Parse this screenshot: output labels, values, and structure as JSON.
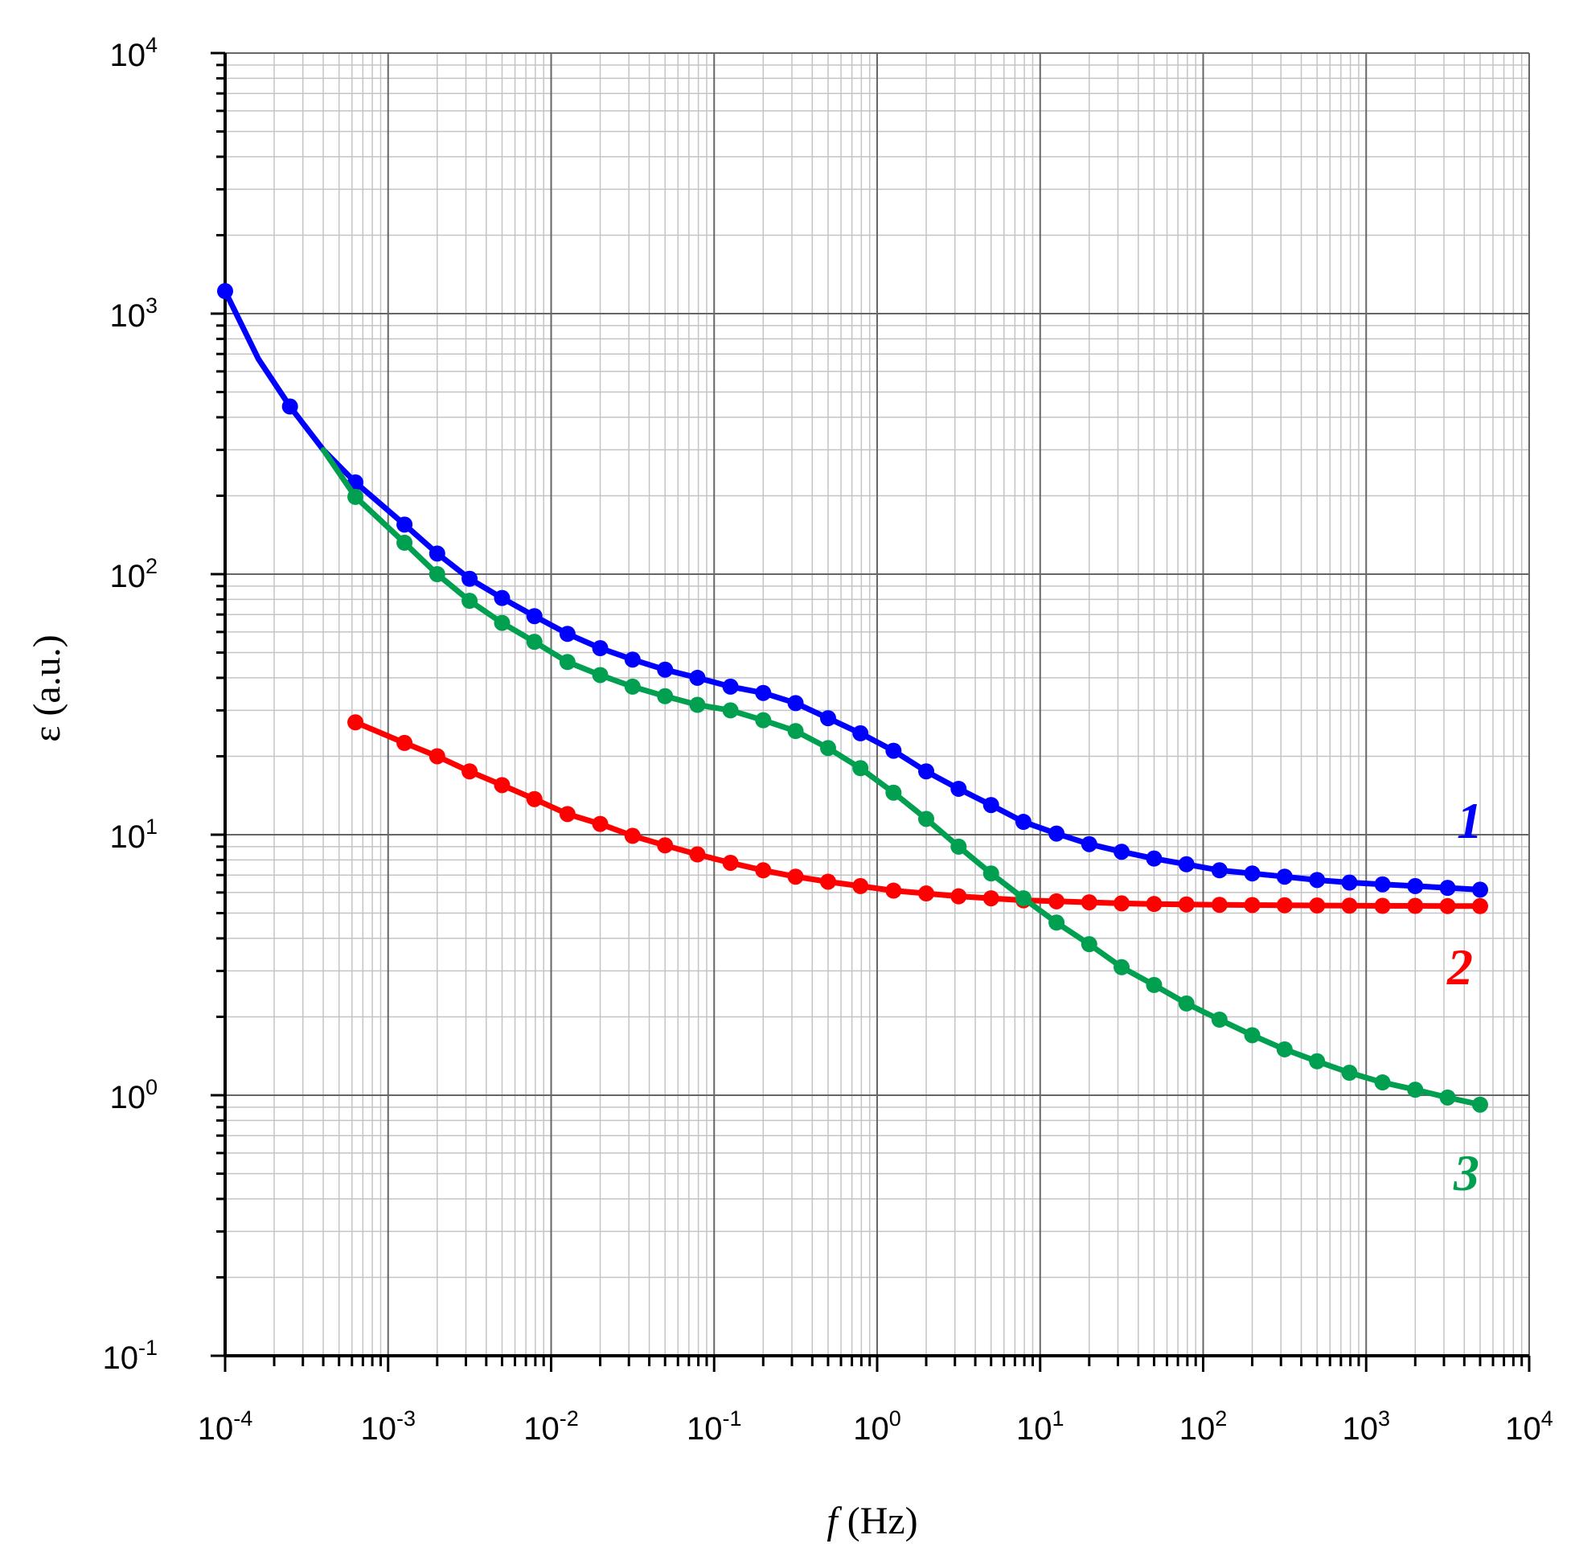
{
  "chart_data": {
    "type": "line",
    "xlabel": {
      "var": "f",
      "unit": " (Hz)"
    },
    "ylabel": "ε (a.u.)",
    "x_scale": "log",
    "y_scale": "log",
    "xlim": [
      0.0001,
      10000
    ],
    "ylim": [
      0.1,
      10000
    ],
    "grid": true,
    "x_ticks": [
      {
        "base": "10",
        "exp": "-4"
      },
      {
        "base": "10",
        "exp": "-3"
      },
      {
        "base": "10",
        "exp": "-2"
      },
      {
        "base": "10",
        "exp": "-1"
      },
      {
        "base": "10",
        "exp": "0"
      },
      {
        "base": "10",
        "exp": "1"
      },
      {
        "base": "10",
        "exp": "2"
      },
      {
        "base": "10",
        "exp": "3"
      },
      {
        "base": "10",
        "exp": "4"
      }
    ],
    "y_ticks": [
      {
        "base": "10",
        "exp": "-1"
      },
      {
        "base": "10",
        "exp": "0"
      },
      {
        "base": "10",
        "exp": "1"
      },
      {
        "base": "10",
        "exp": "2"
      },
      {
        "base": "10",
        "exp": "3"
      },
      {
        "base": "10",
        "exp": "4"
      }
    ],
    "series": [
      {
        "label": "1",
        "color": "#0000ff",
        "line_only": [
          [
            0.00016,
            670
          ],
          [
            0.0004,
            300
          ]
        ],
        "points": [
          [
            0.0001,
            1220
          ],
          [
            0.00025,
            440
          ],
          [
            0.00063,
            225
          ],
          [
            0.00126,
            155
          ],
          [
            0.002,
            120
          ],
          [
            0.00316,
            96
          ],
          [
            0.005,
            81
          ],
          [
            0.0079,
            69
          ],
          [
            0.0126,
            59
          ],
          [
            0.02,
            52
          ],
          [
            0.0316,
            47
          ],
          [
            0.05,
            43
          ],
          [
            0.079,
            40
          ],
          [
            0.126,
            37
          ],
          [
            0.2,
            35
          ],
          [
            0.316,
            32
          ],
          [
            0.5,
            28
          ],
          [
            0.79,
            24.5
          ],
          [
            1.26,
            21
          ],
          [
            2.0,
            17.5
          ],
          [
            3.16,
            15
          ],
          [
            5.0,
            13
          ],
          [
            7.9,
            11.2
          ],
          [
            12.6,
            10.1
          ],
          [
            20,
            9.2
          ],
          [
            31.6,
            8.6
          ],
          [
            50,
            8.1
          ],
          [
            79,
            7.7
          ],
          [
            126,
            7.3
          ],
          [
            200,
            7.1
          ],
          [
            316,
            6.9
          ],
          [
            500,
            6.7
          ],
          [
            790,
            6.55
          ],
          [
            1260,
            6.45
          ],
          [
            2000,
            6.35
          ],
          [
            3160,
            6.25
          ],
          [
            5000,
            6.15
          ]
        ]
      },
      {
        "label": "2",
        "color": "#ff0000",
        "line_only": [],
        "points": [
          [
            0.00063,
            27
          ],
          [
            0.00126,
            22.5
          ],
          [
            0.002,
            20
          ],
          [
            0.00316,
            17.5
          ],
          [
            0.005,
            15.5
          ],
          [
            0.0079,
            13.7
          ],
          [
            0.0126,
            12
          ],
          [
            0.02,
            11
          ],
          [
            0.0316,
            9.9
          ],
          [
            0.05,
            9.1
          ],
          [
            0.079,
            8.4
          ],
          [
            0.126,
            7.8
          ],
          [
            0.2,
            7.3
          ],
          [
            0.316,
            6.9
          ],
          [
            0.5,
            6.6
          ],
          [
            0.79,
            6.35
          ],
          [
            1.26,
            6.1
          ],
          [
            2.0,
            5.95
          ],
          [
            3.16,
            5.8
          ],
          [
            5.0,
            5.7
          ],
          [
            7.9,
            5.6
          ],
          [
            12.6,
            5.55
          ],
          [
            20,
            5.5
          ],
          [
            31.6,
            5.45
          ],
          [
            50,
            5.42
          ],
          [
            79,
            5.4
          ],
          [
            126,
            5.38
          ],
          [
            200,
            5.37
          ],
          [
            316,
            5.36
          ],
          [
            500,
            5.35
          ],
          [
            790,
            5.34
          ],
          [
            1260,
            5.33
          ],
          [
            2000,
            5.33
          ],
          [
            3160,
            5.32
          ],
          [
            5000,
            5.32
          ]
        ]
      },
      {
        "label": "3",
        "color": "#00a050",
        "line_only": [
          [
            0.0004,
            300
          ]
        ],
        "points": [
          [
            0.00063,
            198
          ],
          [
            0.00126,
            132
          ],
          [
            0.002,
            100
          ],
          [
            0.00316,
            79
          ],
          [
            0.005,
            65
          ],
          [
            0.0079,
            55
          ],
          [
            0.0126,
            46
          ],
          [
            0.02,
            41
          ],
          [
            0.0316,
            37
          ],
          [
            0.05,
            34
          ],
          [
            0.079,
            31.5
          ],
          [
            0.126,
            30
          ],
          [
            0.2,
            27.5
          ],
          [
            0.316,
            25
          ],
          [
            0.5,
            21.5
          ],
          [
            0.79,
            18
          ],
          [
            1.26,
            14.5
          ],
          [
            2.0,
            11.5
          ],
          [
            3.16,
            9.0
          ],
          [
            5.0,
            7.1
          ],
          [
            7.9,
            5.7
          ],
          [
            12.6,
            4.6
          ],
          [
            20,
            3.8
          ],
          [
            31.6,
            3.1
          ],
          [
            50,
            2.65
          ],
          [
            79,
            2.25
          ],
          [
            126,
            1.95
          ],
          [
            200,
            1.7
          ],
          [
            316,
            1.5
          ],
          [
            500,
            1.35
          ],
          [
            790,
            1.22
          ],
          [
            1260,
            1.12
          ],
          [
            2000,
            1.05
          ],
          [
            3160,
            0.98
          ],
          [
            5000,
            0.92
          ]
        ]
      }
    ]
  }
}
